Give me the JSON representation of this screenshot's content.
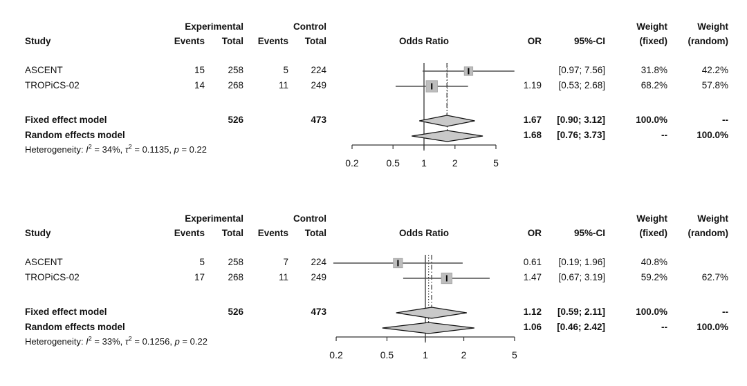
{
  "header": {
    "study": "Study",
    "experimental": "Experimental",
    "control": "Control",
    "events": "Events",
    "total": "Total",
    "plot_title": "Odds Ratio",
    "or": "OR",
    "ci": "95%-CI",
    "weight": "Weight",
    "fixed_suffix": "(fixed)",
    "random_suffix": "(random)"
  },
  "colors": {
    "text": "#111111",
    "ci_line": "#4d4d4d",
    "square_fill": "#bdbdbd",
    "square_stroke": "#a3a3a3",
    "marker_tick": "#000000",
    "diamond_fill": "#c9c9c9",
    "diamond_stroke": "#111111",
    "axis": "#333333",
    "ref_line": "#333333"
  },
  "chart_data": [
    {
      "type": "scatter",
      "subtype": "forest-plot",
      "title": "Odds Ratio",
      "axis": {
        "scale": "log",
        "ticks": [
          0.2,
          0.5,
          1,
          2,
          5
        ],
        "tick_labels": [
          "0.2",
          "0.5",
          "1",
          "2",
          "5"
        ]
      },
      "studies": [
        {
          "name": "ASCENT",
          "exp_events": 15,
          "exp_total": 258,
          "ctrl_events": 5,
          "ctrl_total": 224,
          "or": 2.71,
          "or_label": "",
          "ci_low": 0.97,
          "ci_high": 7.56,
          "ci_label": "[0.97; 7.56]",
          "weight_fixed": "31.8%",
          "weight_random": "42.2%"
        },
        {
          "name": "TROPiCS-02",
          "exp_events": 14,
          "exp_total": 268,
          "ctrl_events": 11,
          "ctrl_total": 249,
          "or": 1.19,
          "or_label": "1.19",
          "ci_low": 0.53,
          "ci_high": 2.68,
          "ci_label": "[0.53; 2.68]",
          "weight_fixed": "68.2%",
          "weight_random": "57.8%"
        }
      ],
      "fixed": {
        "label": "Fixed effect model",
        "exp_total": 526,
        "ctrl_total": 473,
        "or": 1.67,
        "or_label": "1.67",
        "ci_low": 0.9,
        "ci_high": 3.12,
        "ci_label": "[0.90; 3.12]",
        "weight_fixed": "100.0%",
        "weight_random": "--"
      },
      "random": {
        "label": "Random effects model",
        "or": 1.68,
        "or_label": "1.68",
        "ci_low": 0.76,
        "ci_high": 3.73,
        "ci_label": "[0.76; 3.73]",
        "weight_fixed": "--",
        "weight_random": "100.0%"
      },
      "heterogeneity": {
        "prefix": "Heterogeneity: ",
        "I2": "34%",
        "tau2": "0.1135",
        "p": "0.22"
      }
    },
    {
      "type": "scatter",
      "subtype": "forest-plot",
      "title": "Odds Ratio",
      "axis": {
        "scale": "log",
        "ticks": [
          0.2,
          0.5,
          1,
          2,
          5
        ],
        "tick_labels": [
          "0.2",
          "0.5",
          "1",
          "2",
          "5"
        ]
      },
      "studies": [
        {
          "name": "ASCENT",
          "exp_events": 5,
          "exp_total": 258,
          "ctrl_events": 7,
          "ctrl_total": 224,
          "or": 0.61,
          "or_label": "0.61",
          "ci_low": 0.19,
          "ci_high": 1.96,
          "ci_label": "[0.19; 1.96]",
          "weight_fixed": "40.8%",
          "weight_random": ""
        },
        {
          "name": "TROPiCS-02",
          "exp_events": 17,
          "exp_total": 268,
          "ctrl_events": 11,
          "ctrl_total": 249,
          "or": 1.47,
          "or_label": "1.47",
          "ci_low": 0.67,
          "ci_high": 3.19,
          "ci_label": "[0.67; 3.19]",
          "weight_fixed": "59.2%",
          "weight_random": "62.7%"
        }
      ],
      "fixed": {
        "label": "Fixed effect model",
        "exp_total": 526,
        "ctrl_total": 473,
        "or": 1.12,
        "or_label": "1.12",
        "ci_low": 0.59,
        "ci_high": 2.11,
        "ci_label": "[0.59; 2.11]",
        "weight_fixed": "100.0%",
        "weight_random": "--"
      },
      "random": {
        "label": "Random effects model",
        "or": 1.06,
        "or_label": "1.06",
        "ci_low": 0.46,
        "ci_high": 2.42,
        "ci_label": "[0.46; 2.42]",
        "weight_fixed": "--",
        "weight_random": "100.0%"
      },
      "heterogeneity": {
        "prefix": "Heterogeneity: ",
        "I2": "33%",
        "tau2": "0.1256",
        "p": "0.22"
      }
    }
  ]
}
